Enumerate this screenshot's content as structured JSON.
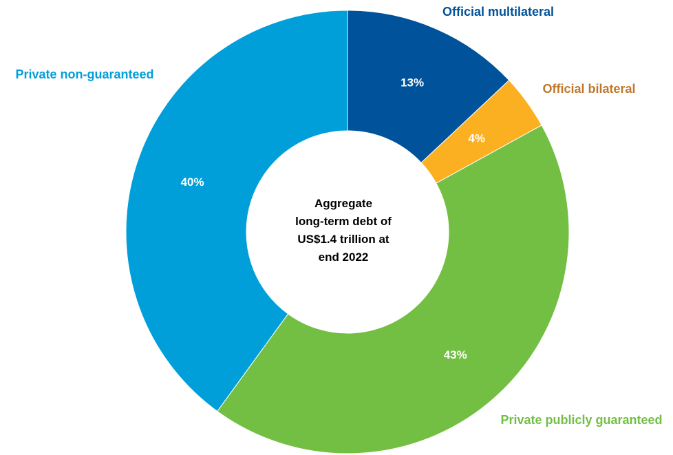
{
  "chart_data": {
    "type": "pie",
    "variant": "donut",
    "categories": [
      "Official multilateral",
      "Official bilateral",
      "Private publicly guaranteed",
      "Private non-guaranteed"
    ],
    "values": [
      13,
      4,
      43,
      40
    ],
    "value_labels": [
      "13%",
      "4%",
      "43%",
      "40%"
    ],
    "colors": [
      "#00529b",
      "#fbb021",
      "#72bf44",
      "#009fda"
    ],
    "label_colors": [
      "#00529b",
      "#c0772c",
      "#72bf44",
      "#009fda"
    ],
    "center_text": [
      "Aggregate",
      "long-term debt of",
      "US$1.4 trillion at",
      "end 2022"
    ]
  }
}
